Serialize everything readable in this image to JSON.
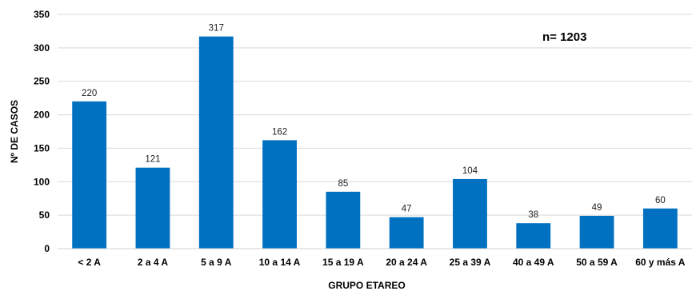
{
  "chart_data": {
    "type": "bar",
    "categories": [
      "< 2 A",
      "2 a 4 A",
      "5 a 9 A",
      "10 a 14 A",
      "15 a 19 A",
      "20 a 24 A",
      "25 a 39 A",
      "40 a 49 A",
      "50 a 59 A",
      "60 y más A"
    ],
    "values": [
      220,
      121,
      317,
      162,
      85,
      47,
      104,
      38,
      49,
      60
    ],
    "xlabel": "GRUPO ETAREO",
    "ylabel": "Nº DE CASOS",
    "ylim": [
      0,
      350
    ],
    "yticks": [
      0,
      50,
      100,
      150,
      200,
      250,
      300,
      350
    ],
    "annotation": "n= 1203",
    "bar_color": "#0070C0",
    "grid": "horizontal"
  }
}
